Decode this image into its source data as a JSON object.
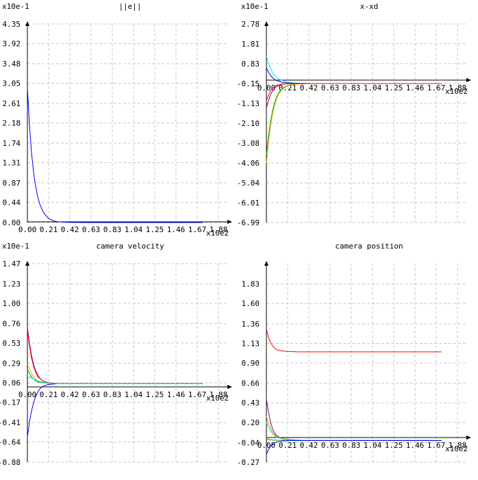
{
  "chart_data": [
    {
      "type": "line",
      "title": "||e||",
      "yscale_label": "x10e-1",
      "xscale_label": "x10e2",
      "grid": true,
      "xlim": [
        0,
        1.88
      ],
      "ylim": [
        0,
        4.35
      ],
      "xticks": [
        "0.00",
        "0.21",
        "0.42",
        "0.63",
        "0.83",
        "1.04",
        "1.25",
        "1.46",
        "1.67",
        "1.88"
      ],
      "yticks": [
        "4.35",
        "3.92",
        "3.48",
        "3.05",
        "2.61",
        "2.18",
        "1.74",
        "1.31",
        "0.87",
        "0.44",
        "0.00"
      ],
      "series": [
        {
          "color": "#0000ff",
          "x": [
            0,
            0.02,
            0.04,
            0.06,
            0.08,
            0.1,
            0.12,
            0.15,
            0.2,
            0.25,
            0.3,
            0.4,
            0.6,
            0.9,
            1.2,
            1.5,
            1.67
          ],
          "y": [
            2.95,
            2.12,
            1.52,
            1.08,
            0.77,
            0.55,
            0.39,
            0.23,
            0.09,
            0.035,
            0.015,
            0.003,
            0,
            0,
            0,
            0,
            0
          ]
        }
      ]
    },
    {
      "type": "line",
      "title": "x-xd",
      "yscale_label": "x10e-1",
      "xscale_label": "x10e2",
      "grid": true,
      "xlim": [
        0,
        1.88
      ],
      "ylim": [
        -6.99,
        2.78
      ],
      "xticks": [
        "0.00",
        "0.21",
        "0.42",
        "0.63",
        "0.83",
        "1.04",
        "1.25",
        "1.46",
        "1.67",
        "1.88"
      ],
      "yticks": [
        "2.78",
        "1.81",
        "0.83",
        "-0.15",
        "-1.13",
        "-2.10",
        "-3.08",
        "-4.06",
        "-5.04",
        "-6.01",
        "-6.99"
      ],
      "series": [
        {
          "color": "#00e5e5",
          "x": [
            0,
            0.02,
            0.04,
            0.06,
            0.08,
            0.1,
            0.12,
            0.15,
            0.2,
            0.25,
            0.3,
            0.4,
            0.6,
            0.9,
            1.2,
            1.5,
            1.67
          ],
          "y": [
            1.2,
            0.86,
            0.58,
            0.38,
            0.24,
            0.14,
            0.07,
            0.0,
            -0.08,
            -0.12,
            -0.13,
            -0.15,
            -0.15,
            -0.15,
            -0.15,
            -0.15,
            -0.15
          ]
        },
        {
          "color": "#0000ff",
          "x": [
            0,
            0.02,
            0.04,
            0.06,
            0.08,
            0.1,
            0.15,
            0.2,
            0.3,
            0.4,
            0.6,
            0.9,
            1.2,
            1.5,
            1.67
          ],
          "y": [
            0.62,
            0.4,
            0.24,
            0.13,
            0.05,
            -0.01,
            -0.09,
            -0.12,
            -0.14,
            -0.15,
            -0.15,
            -0.15,
            -0.15,
            -0.15,
            -0.15
          ]
        },
        {
          "color": "#800080",
          "x": [
            0,
            0.02,
            0.04,
            0.06,
            0.08,
            0.1,
            0.15,
            0.2,
            0.3,
            0.4,
            0.6,
            0.9,
            1.2,
            1.5,
            1.67
          ],
          "y": [
            -1.35,
            -0.98,
            -0.7,
            -0.5,
            -0.37,
            -0.28,
            -0.18,
            -0.16,
            -0.15,
            -0.15,
            -0.15,
            -0.15,
            -0.15,
            -0.15,
            -0.15
          ]
        },
        {
          "color": "#00aa00",
          "x": [
            0,
            0.02,
            0.04,
            0.06,
            0.08,
            0.1,
            0.12,
            0.15,
            0.2,
            0.25,
            0.3,
            0.4,
            0.6,
            0.9,
            1.2,
            1.5,
            1.67
          ],
          "y": [
            -3.65,
            -2.7,
            -2.0,
            -1.45,
            -1.05,
            -0.78,
            -0.58,
            -0.4,
            -0.25,
            -0.19,
            -0.17,
            -0.155,
            -0.15,
            -0.15,
            -0.15,
            -0.15,
            -0.15
          ]
        },
        {
          "color": "#e0a000",
          "x": [
            0,
            0.02,
            0.04,
            0.06,
            0.08,
            0.1,
            0.12,
            0.15,
            0.2,
            0.25,
            0.3,
            0.4,
            0.6,
            0.9,
            1.2,
            1.5,
            1.67
          ],
          "y": [
            -4.06,
            -3.0,
            -2.2,
            -1.62,
            -1.18,
            -0.86,
            -0.64,
            -0.44,
            -0.27,
            -0.2,
            -0.17,
            -0.155,
            -0.15,
            -0.15,
            -0.15,
            -0.15,
            -0.15
          ]
        },
        {
          "color": "#ff0000",
          "x": [
            0,
            0.02,
            0.04,
            0.06,
            0.08,
            0.1,
            0.15,
            0.2,
            0.3,
            0.4,
            0.6,
            0.9,
            1.2,
            1.5,
            1.67
          ],
          "y": [
            -1.0,
            -0.72,
            -0.52,
            -0.39,
            -0.3,
            -0.24,
            -0.18,
            -0.16,
            -0.15,
            -0.15,
            -0.15,
            -0.15,
            -0.15,
            -0.15,
            -0.15
          ]
        }
      ]
    },
    {
      "type": "line",
      "title": "camera velocity",
      "yscale_label": "x10e-1",
      "xscale_label": "x10e2",
      "grid": true,
      "xlim": [
        0,
        1.88
      ],
      "ylim": [
        -0.88,
        1.47
      ],
      "xticks": [
        "0.00",
        "0.21",
        "0.42",
        "0.63",
        "0.83",
        "1.04",
        "1.25",
        "1.46",
        "1.67",
        "1.88"
      ],
      "yticks": [
        "1.47",
        "1.23",
        "1.00",
        "0.76",
        "0.53",
        "0.29",
        "0.06",
        "-0.17",
        "-0.41",
        "-0.64",
        "-0.88"
      ],
      "series": [
        {
          "color": "#0000ff",
          "x": [
            0,
            0.02,
            0.04,
            0.06,
            0.08,
            0.1,
            0.12,
            0.15,
            0.2,
            0.25,
            0.3,
            0.4,
            0.6,
            0.9,
            1.2,
            1.5,
            1.67
          ],
          "y": [
            -0.58,
            -0.4,
            -0.27,
            -0.17,
            -0.1,
            -0.05,
            -0.01,
            0.02,
            0.04,
            0.045,
            0.05,
            0.05,
            0.05,
            0.05,
            0.05,
            0.05,
            0.05
          ]
        },
        {
          "color": "#800080",
          "x": [
            0,
            0.02,
            0.04,
            0.06,
            0.08,
            0.1,
            0.12,
            0.15,
            0.2,
            0.25,
            0.3,
            0.4,
            0.6,
            0.9,
            1.2,
            1.5,
            1.67
          ],
          "y": [
            0.72,
            0.52,
            0.38,
            0.27,
            0.2,
            0.15,
            0.11,
            0.08,
            0.06,
            0.055,
            0.05,
            0.05,
            0.05,
            0.05,
            0.05,
            0.05,
            0.05
          ]
        },
        {
          "color": "#ff0000",
          "x": [
            0,
            0.02,
            0.04,
            0.06,
            0.08,
            0.1,
            0.15,
            0.2,
            0.3,
            0.4,
            0.6,
            0.9,
            1.2,
            1.5,
            1.67
          ],
          "y": [
            0.68,
            0.49,
            0.35,
            0.25,
            0.18,
            0.13,
            0.08,
            0.06,
            0.05,
            0.05,
            0.05,
            0.05,
            0.05,
            0.05,
            0.05
          ]
        },
        {
          "color": "#e0a000",
          "x": [
            0,
            0.02,
            0.04,
            0.06,
            0.08,
            0.1,
            0.15,
            0.2,
            0.3,
            0.4,
            0.6,
            0.9,
            1.2,
            1.5,
            1.67
          ],
          "y": [
            0.28,
            0.22,
            0.17,
            0.13,
            0.1,
            0.08,
            0.065,
            0.055,
            0.05,
            0.05,
            0.05,
            0.05,
            0.05,
            0.05,
            0.05
          ]
        },
        {
          "color": "#00aa00",
          "x": [
            0,
            0.02,
            0.04,
            0.06,
            0.08,
            0.1,
            0.15,
            0.2,
            0.3,
            0.4,
            0.6,
            0.9,
            1.2,
            1.5,
            1.67
          ],
          "y": [
            0.22,
            0.17,
            0.13,
            0.1,
            0.08,
            0.07,
            0.06,
            0.055,
            0.05,
            0.05,
            0.05,
            0.05,
            0.05,
            0.05,
            0.05
          ]
        },
        {
          "color": "#00e5e5",
          "x": [
            0,
            0.02,
            0.04,
            0.06,
            0.08,
            0.1,
            0.15,
            0.2,
            0.3,
            0.4,
            0.6,
            0.9,
            1.2,
            1.5,
            1.67
          ],
          "y": [
            0.1,
            0.13,
            0.12,
            0.1,
            0.09,
            0.08,
            0.065,
            0.055,
            0.05,
            0.05,
            0.05,
            0.05,
            0.05,
            0.05,
            0.05
          ]
        }
      ]
    },
    {
      "type": "line",
      "title": "camera position",
      "yscale_label": "",
      "xscale_label": "x10e2",
      "grid": true,
      "xlim": [
        0,
        1.88
      ],
      "ylim": [
        -0.27,
        2.07
      ],
      "xticks": [
        "0.00",
        "0.21",
        "0.42",
        "0.63",
        "0.83",
        "1.04",
        "1.25",
        "1.46",
        "1.67",
        "1.88"
      ],
      "yticks": [
        "1.83",
        "1.60",
        "1.36",
        "1.13",
        "0.90",
        "0.66",
        "0.43",
        "0.20",
        "-0.04",
        "-0.27"
      ],
      "series": [
        {
          "color": "#ff0000",
          "x": [
            0,
            0.02,
            0.04,
            0.06,
            0.08,
            0.1,
            0.15,
            0.2,
            0.3,
            0.4,
            0.6,
            0.9,
            1.2,
            1.5,
            1.67
          ],
          "y": [
            1.3,
            1.2,
            1.14,
            1.1,
            1.07,
            1.055,
            1.04,
            1.035,
            1.03,
            1.03,
            1.03,
            1.03,
            1.03,
            1.03,
            1.03
          ]
        },
        {
          "color": "#800080",
          "x": [
            0,
            0.02,
            0.04,
            0.06,
            0.08,
            0.1,
            0.15,
            0.2,
            0.3,
            0.4,
            0.6,
            0.9,
            1.2,
            1.5,
            1.67
          ],
          "y": [
            0.47,
            0.32,
            0.2,
            0.12,
            0.07,
            0.04,
            0.01,
            0.0,
            -0.01,
            -0.015,
            -0.015,
            -0.015,
            -0.015,
            -0.015,
            -0.015
          ]
        },
        {
          "color": "#e0a000",
          "x": [
            0,
            0.02,
            0.04,
            0.06,
            0.08,
            0.1,
            0.15,
            0.2,
            0.3,
            0.4,
            0.6,
            0.9,
            1.2,
            1.5,
            1.67
          ],
          "y": [
            0.27,
            0.19,
            0.13,
            0.08,
            0.05,
            0.03,
            0.01,
            0.0,
            -0.01,
            -0.015,
            -0.015,
            -0.015,
            -0.015,
            -0.015,
            -0.015
          ]
        },
        {
          "color": "#00e5e5",
          "x": [
            0,
            0.02,
            0.04,
            0.06,
            0.08,
            0.1,
            0.15,
            0.2,
            0.3,
            0.4,
            0.6,
            0.9,
            1.2,
            1.5,
            1.67
          ],
          "y": [
            0.2,
            0.14,
            0.1,
            0.06,
            0.04,
            0.02,
            0.005,
            -0.005,
            -0.01,
            -0.015,
            -0.015,
            -0.015,
            -0.015,
            -0.015,
            -0.015
          ]
        },
        {
          "color": "#00aa00",
          "x": [
            0,
            0.02,
            0.04,
            0.06,
            0.08,
            0.1,
            0.15,
            0.2,
            0.3,
            0.4,
            0.6,
            0.9,
            1.2,
            1.5,
            1.67
          ],
          "y": [
            0.0,
            0.0,
            -0.005,
            -0.01,
            -0.01,
            -0.012,
            -0.013,
            -0.014,
            -0.015,
            -0.015,
            -0.015,
            -0.015,
            -0.015,
            -0.015,
            -0.015
          ]
        },
        {
          "color": "#0000ff",
          "x": [
            0,
            0.02,
            0.04,
            0.06,
            0.08,
            0.1,
            0.15,
            0.2,
            0.3,
            0.4,
            0.6,
            0.9,
            1.2,
            1.5,
            1.67
          ],
          "y": [
            -0.18,
            -0.12,
            -0.08,
            -0.06,
            -0.04,
            -0.03,
            -0.02,
            -0.017,
            -0.015,
            -0.015,
            -0.015,
            -0.015,
            -0.015,
            -0.015,
            -0.015
          ]
        }
      ]
    }
  ]
}
